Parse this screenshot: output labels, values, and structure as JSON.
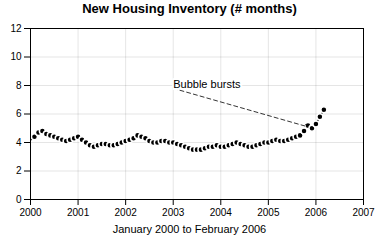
{
  "chart_data": {
    "type": "line",
    "title": "New Housing Inventory (# months)",
    "x_label": "January 2000 to February 2006",
    "x": [
      2000.0,
      2000.083,
      2000.167,
      2000.25,
      2000.333,
      2000.417,
      2000.5,
      2000.583,
      2000.667,
      2000.75,
      2000.833,
      2000.917,
      2001.0,
      2001.083,
      2001.167,
      2001.25,
      2001.333,
      2001.417,
      2001.5,
      2001.583,
      2001.667,
      2001.75,
      2001.833,
      2001.917,
      2002.0,
      2002.083,
      2002.167,
      2002.25,
      2002.333,
      2002.417,
      2002.5,
      2002.583,
      2002.667,
      2002.75,
      2002.833,
      2002.917,
      2003.0,
      2003.083,
      2003.167,
      2003.25,
      2003.333,
      2003.417,
      2003.5,
      2003.583,
      2003.667,
      2003.75,
      2003.833,
      2003.917,
      2004.0,
      2004.083,
      2004.167,
      2004.25,
      2004.333,
      2004.417,
      2004.5,
      2004.583,
      2004.667,
      2004.75,
      2004.833,
      2004.917,
      2005.0,
      2005.083,
      2005.167,
      2005.25,
      2005.333,
      2005.417,
      2005.5,
      2005.583,
      2005.667,
      2005.75,
      2005.833,
      2005.917,
      2006.0,
      2006.083,
      2006.167
    ],
    "values": [
      4.3,
      4.4,
      4.7,
      4.8,
      4.6,
      4.5,
      4.4,
      4.3,
      4.2,
      4.1,
      4.2,
      4.3,
      4.4,
      4.2,
      4.0,
      3.8,
      3.7,
      3.8,
      3.9,
      3.9,
      3.8,
      3.8,
      3.9,
      4.0,
      4.1,
      4.2,
      4.3,
      4.5,
      4.4,
      4.3,
      4.1,
      4.0,
      4.0,
      4.1,
      4.1,
      4.0,
      4.0,
      3.9,
      3.8,
      3.7,
      3.6,
      3.5,
      3.5,
      3.5,
      3.6,
      3.7,
      3.7,
      3.8,
      3.7,
      3.7,
      3.8,
      3.9,
      4.0,
      3.9,
      3.8,
      3.7,
      3.7,
      3.8,
      3.9,
      4.0,
      4.0,
      4.1,
      4.2,
      4.1,
      4.1,
      4.2,
      4.3,
      4.4,
      4.5,
      4.8,
      5.2,
      5.0,
      5.3,
      5.8,
      6.3
    ],
    "color": "#000000",
    "marker": "circle",
    "xlim": [
      2000.0,
      2007.0
    ],
    "xticks": [
      2000,
      2001,
      2002,
      2003,
      2004,
      2005,
      2006,
      2007
    ],
    "ylim": [
      0,
      12
    ],
    "yticks": [
      0,
      2,
      4,
      6,
      8,
      10,
      12
    ],
    "grid": true,
    "annotations": [
      {
        "text": "Bubble bursts",
        "x": 2005.83,
        "y": 5.1,
        "text_x": 2003.0,
        "text_y": 7.8
      }
    ]
  }
}
